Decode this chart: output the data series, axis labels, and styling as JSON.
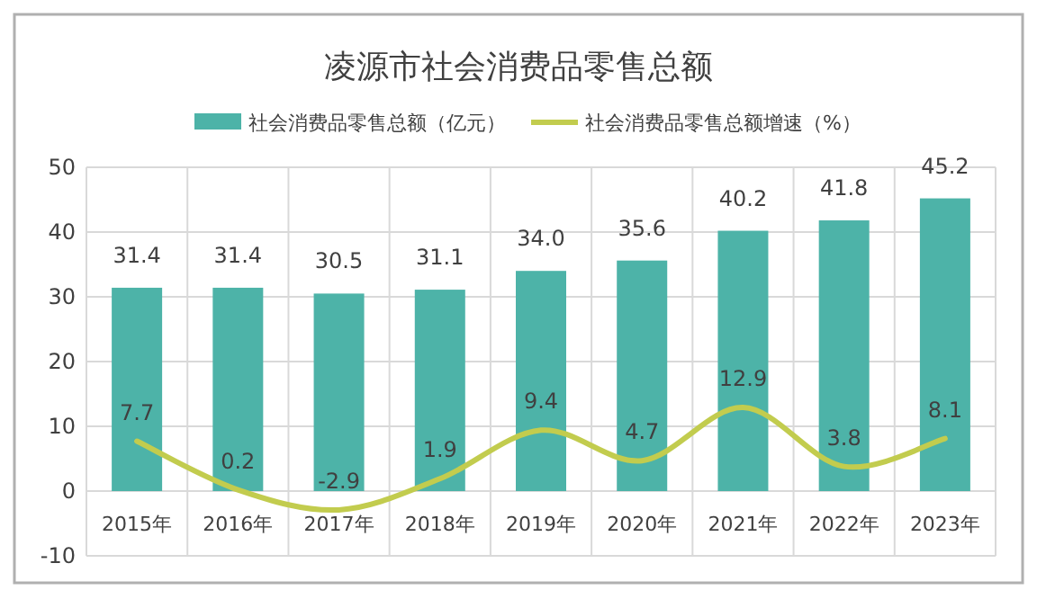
{
  "chart_data": {
    "type": "bar",
    "title": "凌源市社会消费品零售总额",
    "categories": [
      "2015年",
      "2016年",
      "2017年",
      "2018年",
      "2019年",
      "2020年",
      "2021年",
      "2022年",
      "2023年"
    ],
    "series": [
      {
        "name": "社会消费品零售总额（亿元）",
        "color": "#4db3a8",
        "values": [
          31.4,
          31.4,
          30.5,
          31.1,
          34.0,
          35.6,
          40.2,
          41.8,
          45.2
        ],
        "value_labels": [
          "31.4",
          "31.4",
          "30.5",
          "31.1",
          "34.0",
          "35.6",
          "40.2",
          "41.8",
          "45.2"
        ]
      },
      {
        "name": "社会消费品零售总额增速（%）",
        "type": "line",
        "color": "#c2cc4e",
        "values": [
          7.7,
          0.2,
          -2.9,
          1.9,
          9.4,
          4.7,
          12.9,
          3.8,
          8.1
        ],
        "value_labels": [
          "7.7",
          "0.2",
          "-2.9",
          "1.9",
          "9.4",
          "4.7",
          "12.9",
          "3.8",
          "8.1"
        ]
      }
    ],
    "ylim": [
      -10,
      50
    ],
    "yticks": [
      -10,
      0,
      10,
      20,
      30,
      40,
      50
    ],
    "grid": true,
    "legend": "top"
  }
}
